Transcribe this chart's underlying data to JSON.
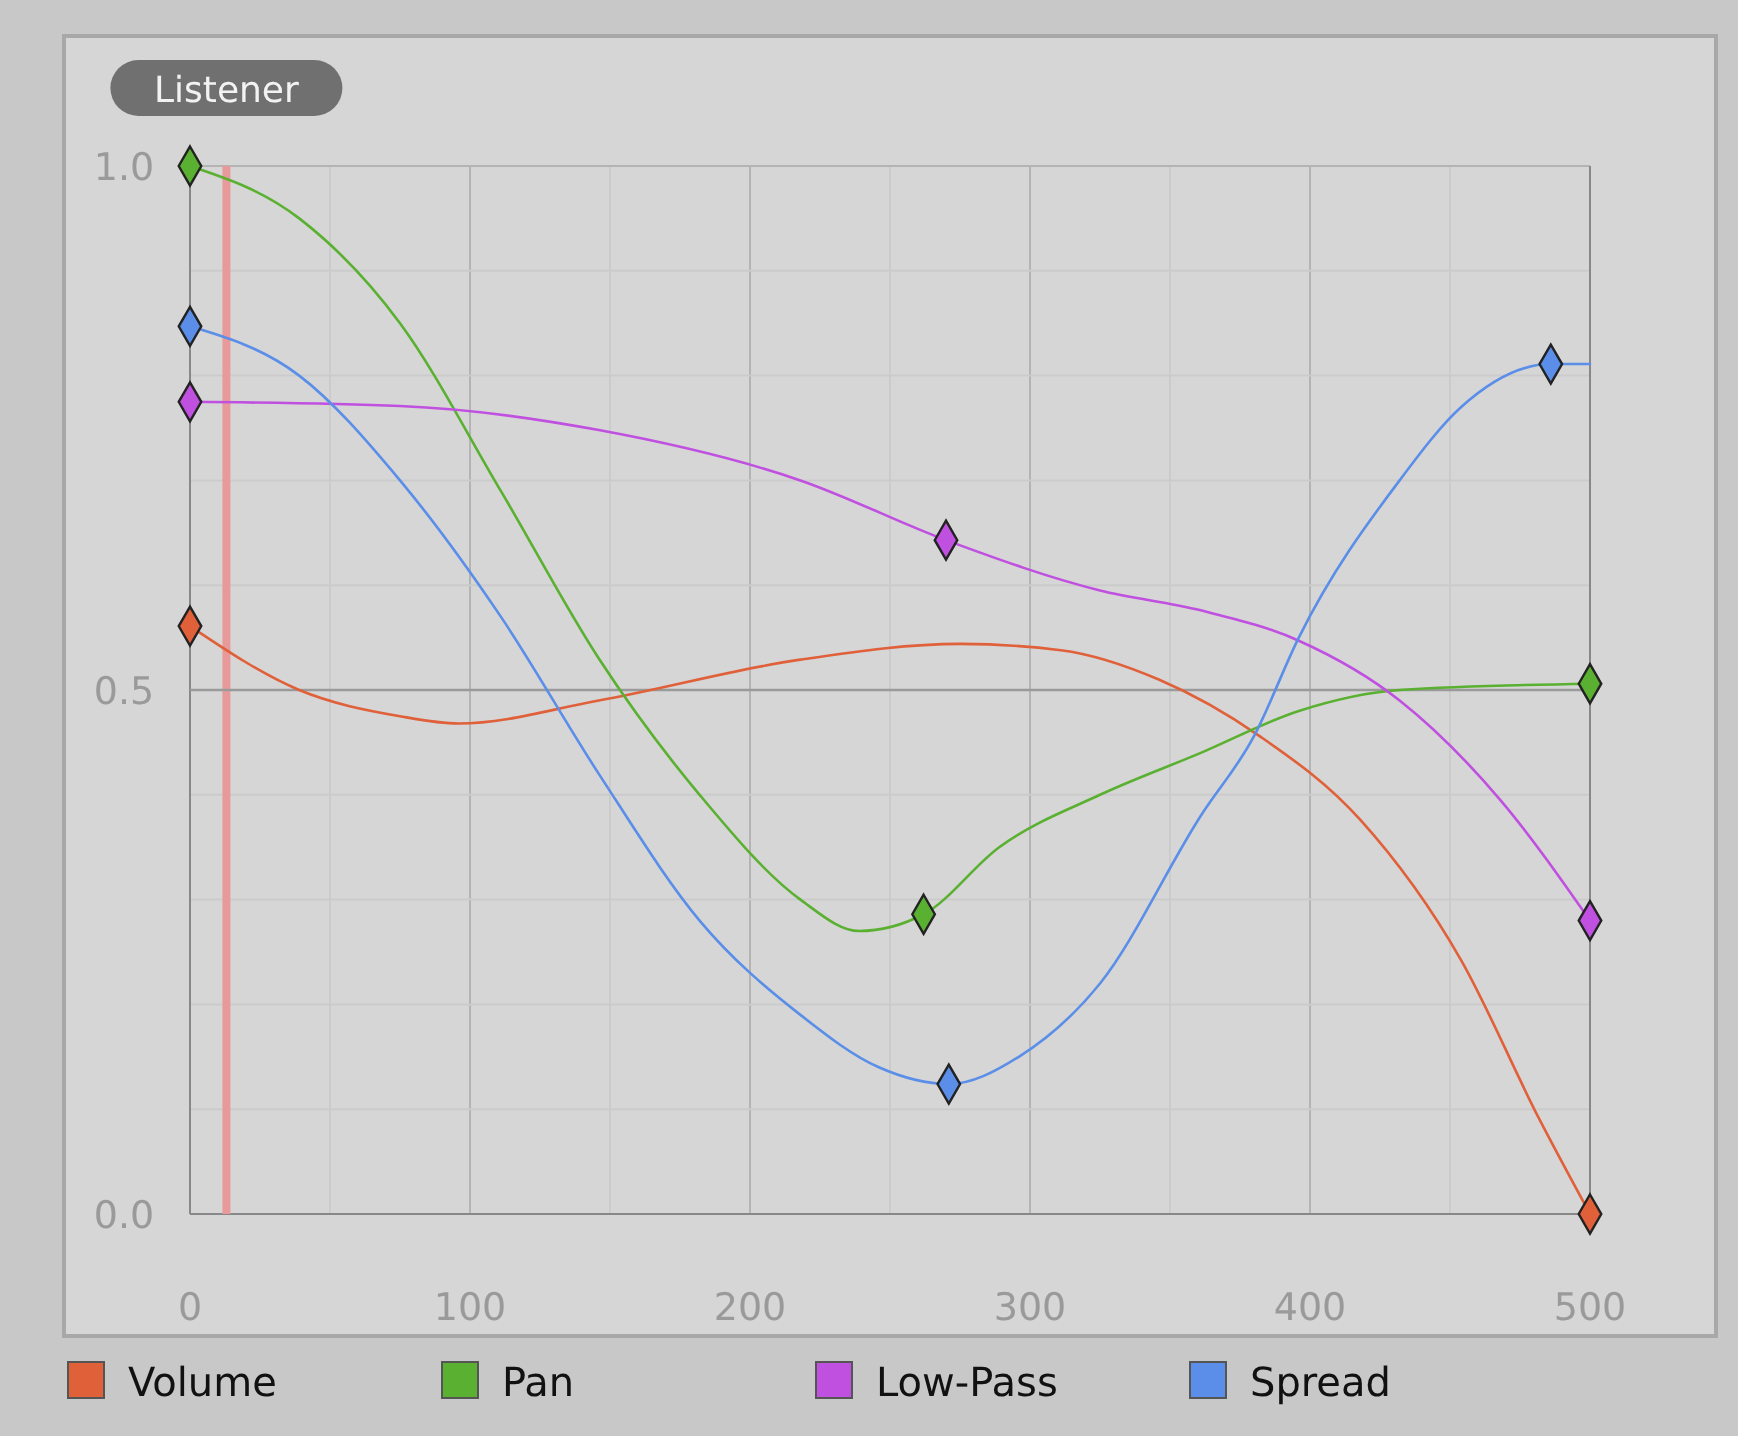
{
  "chart_data": {
    "type": "line",
    "xlim": [
      0,
      500
    ],
    "ylim": [
      0,
      1
    ],
    "xticks": [
      0,
      {
        "value": 50,
        "label": null
      },
      100,
      {
        "value": 150,
        "label": null
      },
      200,
      {
        "value": 250,
        "label": null
      },
      300,
      {
        "value": 350,
        "label": null
      },
      400,
      {
        "value": 450,
        "label": null
      },
      500
    ],
    "yticks": [
      {
        "value": 0,
        "label": "0.0"
      },
      {
        "value": 0.1,
        "label": null
      },
      {
        "value": 0.2,
        "label": null
      },
      {
        "value": 0.3,
        "label": null
      },
      {
        "value": 0.4,
        "label": null
      },
      0.5,
      {
        "value": 0.6,
        "label": null
      },
      {
        "value": 0.7,
        "label": null
      },
      {
        "value": 0.8,
        "label": null
      },
      {
        "value": 0.9,
        "label": null
      },
      {
        "value": 1,
        "label": "1.0"
      }
    ],
    "grid": true,
    "legend": "bottom",
    "marker": "none",
    "line_style": "solid",
    "ref_lines": [
      {
        "axis": "x",
        "value": 13,
        "label": "Listener",
        "color": "#e89a9a"
      },
      {
        "axis": "y",
        "value": 0.5,
        "color": "#9a9a9a"
      }
    ],
    "series": [
      {
        "name": "Volume",
        "color": "#e0603a",
        "x": [
          0,
          39,
          75,
          96,
          146,
          218,
          275,
          311,
          346,
          382,
          418,
          454,
          482,
          500
        ],
        "values": [
          0.561,
          0.5,
          0.475,
          0.468,
          0.49,
          0.529,
          0.544,
          0.538,
          0.51,
          0.456,
          0.376,
          0.242,
          0.09,
          0
        ]
      },
      {
        "name": "Pan",
        "color": "#5ab030",
        "x": [
          0,
          39,
          75,
          111,
          146,
          182,
          218,
          239,
          262,
          289,
          325,
          361,
          396,
          432,
          500
        ],
        "values": [
          1,
          0.95,
          0.85,
          0.69,
          0.53,
          0.4,
          0.3,
          0.27,
          0.286,
          0.35,
          0.4,
          0.44,
          0.48,
          0.5,
          0.506
        ]
      },
      {
        "name": "Low-Pass",
        "color": "#c050e0",
        "x": [
          0,
          75,
          146,
          218,
          270,
          325,
          361,
          396,
          432,
          468,
          500
        ],
        "values": [
          0.775,
          0.771,
          0.748,
          0.7,
          0.643,
          0.595,
          0.576,
          0.547,
          0.49,
          0.395,
          0.28
        ]
      },
      {
        "name": "Spread",
        "color": "#5a8ee8",
        "x": [
          0,
          39,
          75,
          111,
          146,
          182,
          218,
          246,
          271,
          296,
          325,
          361,
          380,
          396,
          432,
          454,
          486,
          500
        ],
        "values": [
          0.847,
          0.8,
          0.7,
          0.57,
          0.42,
          0.28,
          0.19,
          0.14,
          0.124,
          0.15,
          0.22,
          0.38,
          0.456,
          0.55,
          0.7,
          0.77,
          0.811,
          0.811
        ]
      },
      {
        "type": "scatter",
        "marker": "diamond",
        "color": "#e0603a",
        "x": [
          0,
          500
        ],
        "values": [
          0.561,
          0
        ]
      },
      {
        "type": "scatter",
        "marker": "diamond",
        "color": "#5ab030",
        "x": [
          0,
          262,
          500
        ],
        "values": [
          1,
          0.286,
          0.506
        ]
      },
      {
        "type": "scatter",
        "marker": "diamond",
        "color": "#c050e0",
        "x": [
          0,
          270,
          500
        ],
        "values": [
          0.775,
          0.643,
          0.28
        ]
      },
      {
        "type": "scatter",
        "marker": "diamond",
        "color": "#5a8ee8",
        "x": [
          0,
          271,
          486
        ],
        "values": [
          0.847,
          0.124,
          0.811
        ]
      }
    ]
  }
}
